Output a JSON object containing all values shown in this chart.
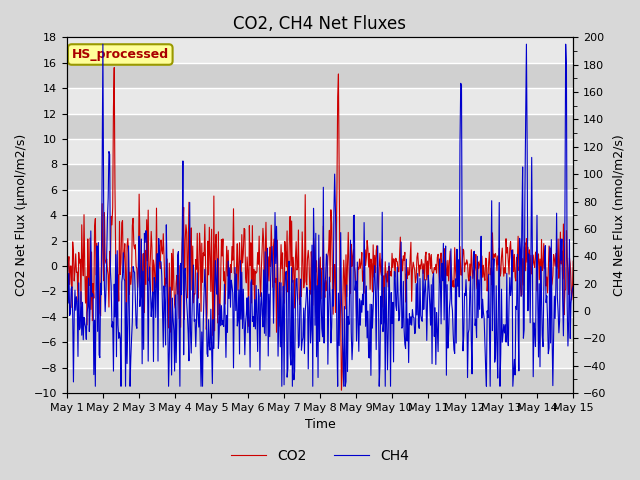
{
  "title": "CO2, CH4 Net Fluxes",
  "xlabel": "Time",
  "ylabel_left": "CO2 Net Flux (μmol/m2/s)",
  "ylabel_right": "CH4 Net Flux (nmol/m2/s)",
  "ylim_left": [
    -10,
    18
  ],
  "ylim_right": [
    -60,
    200
  ],
  "yticks_left": [
    -10,
    -8,
    -6,
    -4,
    -2,
    0,
    2,
    4,
    6,
    8,
    10,
    12,
    14,
    16,
    18
  ],
  "yticks_right": [
    -60,
    -40,
    -20,
    0,
    20,
    40,
    60,
    80,
    100,
    120,
    140,
    160,
    180,
    200
  ],
  "co2_color": "#cc0000",
  "ch4_color": "#0000cc",
  "background_color": "#d8d8d8",
  "plot_bg_color": "#e8e8e8",
  "plot_bg_dark": "#d0d0d0",
  "label_box_text": "HS_processed",
  "label_box_facecolor": "#ffff99",
  "label_box_edgecolor": "#999900",
  "n_days": 14,
  "points_per_day": 48,
  "title_fontsize": 12,
  "axis_label_fontsize": 9,
  "tick_label_fontsize": 8,
  "legend_fontsize": 10,
  "linewidth": 0.8
}
